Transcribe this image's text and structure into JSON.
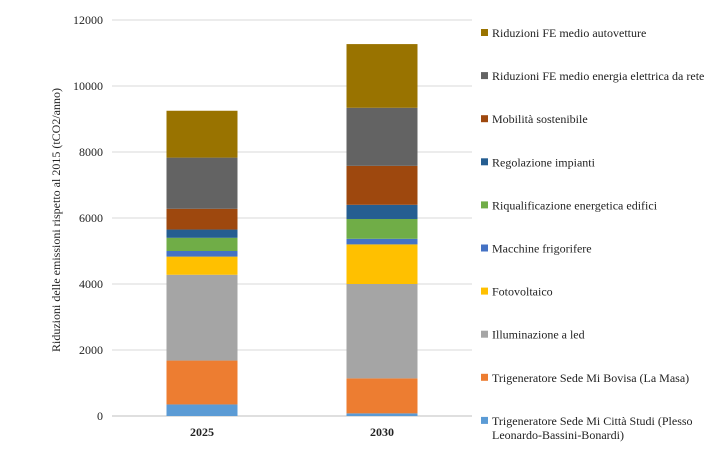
{
  "chart_data": {
    "type": "bar",
    "stacked": true,
    "title": "",
    "xlabel": "",
    "ylabel": "Riduzioni delle emissioni rispetto al 2015 (tCO2/anno)",
    "ylim": [
      0,
      12000
    ],
    "yticks": [
      0,
      2000,
      4000,
      6000,
      8000,
      10000,
      12000
    ],
    "grid": true,
    "legend_position": "right",
    "categories": [
      "2025",
      "2030"
    ],
    "series": [
      {
        "name": "Trigeneratore Sede Mi Città Studi (Plesso Leonardo-Bassini-Bonardi)",
        "color": "#5B9BD5",
        "values": [
          350,
          80
        ]
      },
      {
        "name": "Trigeneratore Sede Mi Bovisa (La Masa)",
        "color": "#ED7D31",
        "values": [
          1330,
          1060
        ]
      },
      {
        "name": "Illuminazione a led",
        "color": "#A5A5A5",
        "values": [
          2600,
          2860
        ]
      },
      {
        "name": "Fotovoltaico",
        "color": "#FFC000",
        "values": [
          550,
          1200
        ]
      },
      {
        "name": "Macchine frigorifere",
        "color": "#4472C4",
        "values": [
          170,
          170
        ]
      },
      {
        "name": "Riqualificazione energetica edifici",
        "color": "#70AD47",
        "values": [
          400,
          600
        ]
      },
      {
        "name": "Regolazione impianti",
        "color": "#255E91",
        "values": [
          250,
          430
        ]
      },
      {
        "name": "Mobilità sostenibile",
        "color": "#9E480E",
        "values": [
          630,
          1180
        ]
      },
      {
        "name": "Riduzioni FE medio energia elettrica da rete",
        "color": "#636363",
        "values": [
          1550,
          1760
        ]
      },
      {
        "name": "Riduzioni FE medio autovetture",
        "color": "#997300",
        "values": [
          1420,
          1930
        ]
      }
    ]
  }
}
